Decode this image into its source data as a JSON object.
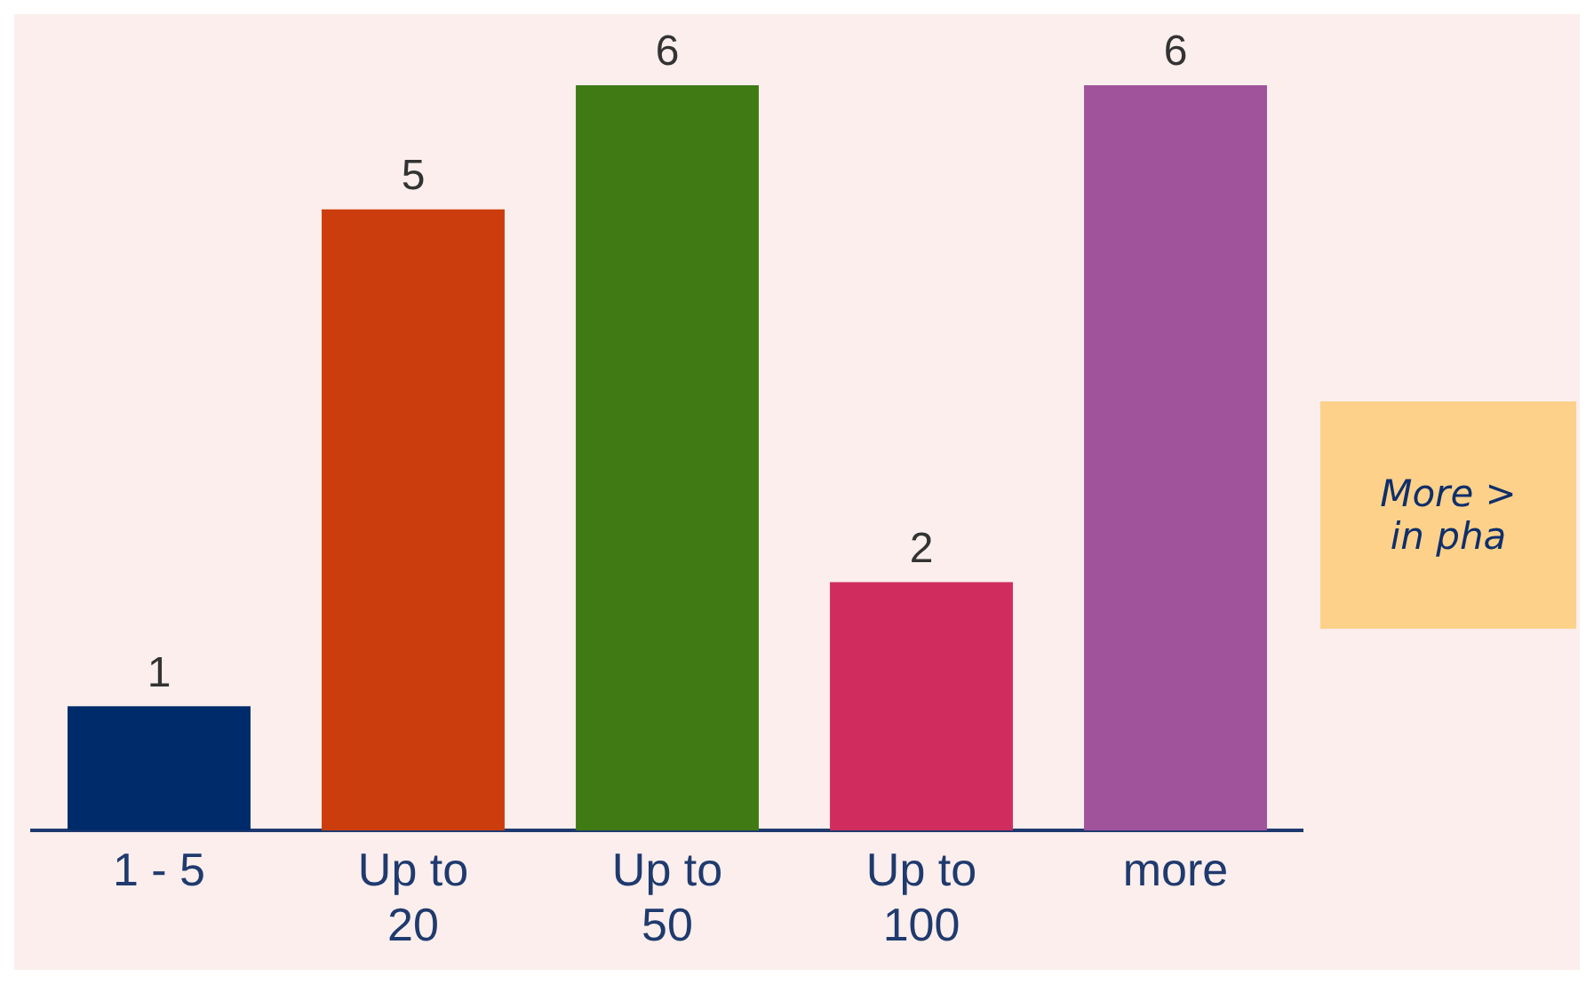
{
  "chart_data": {
    "type": "bar",
    "categories": [
      "1 - 5",
      "Up to\n20",
      "Up to\n50",
      "Up to\n100",
      "more"
    ],
    "values": [
      1,
      5,
      6,
      2,
      6
    ],
    "colors": [
      "#002b6b",
      "#cc3d0d",
      "#3f7a14",
      "#d12c5e",
      "#a0529b"
    ],
    "data_labels": true,
    "annotations": [
      "More >\nin pha"
    ]
  }
}
